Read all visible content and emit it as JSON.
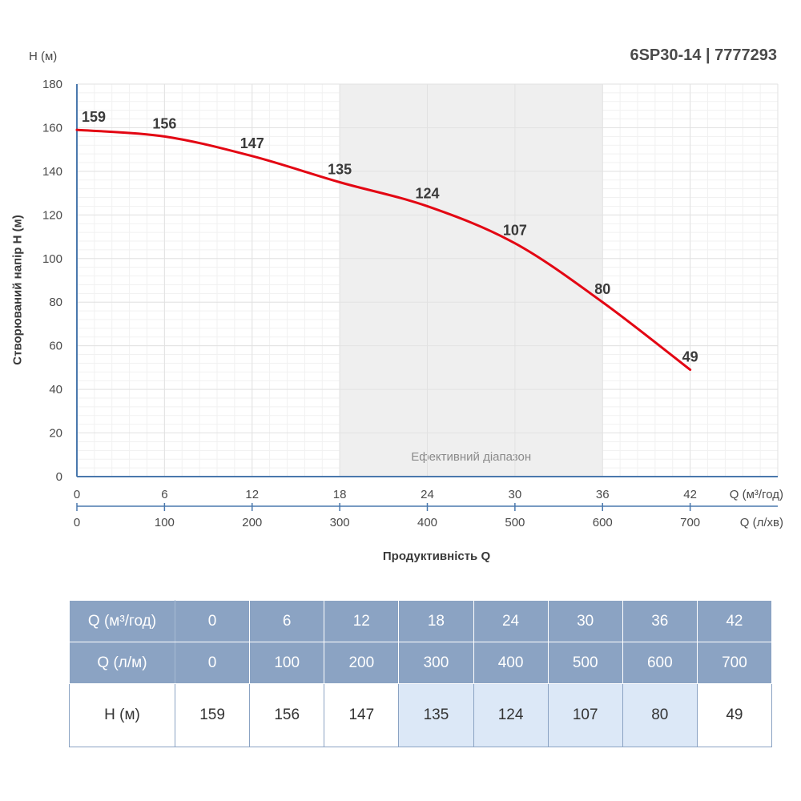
{
  "header": {
    "model": "6SP30-14 | 7777293",
    "y_unit": "H (м)",
    "y_axis_label": "Створюваний напір H (м)",
    "x_axis_label": "Продуктивність Q",
    "x_unit_primary": "Q (м³/год)",
    "x_unit_secondary": "Q (л/хв)",
    "efficient_range_label": "Ефективний діапазон"
  },
  "chart_data": {
    "type": "line",
    "title": "6SP30-14 | 7777293",
    "xlabel": "Продуктивність Q",
    "ylabel": "Створюваний напір H (м)",
    "x": [
      0,
      6,
      12,
      18,
      24,
      30,
      36,
      42
    ],
    "x_secondary": [
      0,
      100,
      200,
      300,
      400,
      500,
      600,
      700
    ],
    "series": [
      {
        "values": [
          159,
          156,
          147,
          135,
          124,
          107,
          80,
          49
        ],
        "color": "#e30613"
      }
    ],
    "xlim": [
      0,
      48
    ],
    "ylim": [
      0,
      180
    ],
    "y_ticks": [
      0,
      20,
      40,
      60,
      80,
      100,
      120,
      140,
      160,
      180
    ],
    "x_ticks": [
      "0",
      "6",
      "12",
      "18",
      "24",
      "30",
      "36",
      "42"
    ],
    "x_ticks_secondary": [
      "0",
      "100",
      "200",
      "300",
      "400",
      "500",
      "600",
      "700"
    ],
    "data_labels": [
      "159",
      "156",
      "147",
      "135",
      "124",
      "107",
      "80",
      "49"
    ],
    "efficient_range": [
      18,
      36
    ],
    "grid": true
  },
  "table": {
    "row1_header": "Q (м³/год)",
    "row2_header": "Q (л/м)",
    "row3_header": "H (м)",
    "q_m3h": [
      "0",
      "6",
      "12",
      "18",
      "24",
      "30",
      "36",
      "42"
    ],
    "q_lm": [
      "0",
      "100",
      "200",
      "300",
      "400",
      "500",
      "600",
      "700"
    ],
    "h_m": [
      "159",
      "156",
      "147",
      "135",
      "124",
      "107",
      "80",
      "49"
    ],
    "efficient_columns": [
      3,
      4,
      5,
      6
    ]
  },
  "colors": {
    "curve": "#e30613",
    "axis": "#4a78ad",
    "efficient_band": "#efefef",
    "table_header": "#8ba3c3",
    "table_efficient_cell": "#dce8f7"
  }
}
